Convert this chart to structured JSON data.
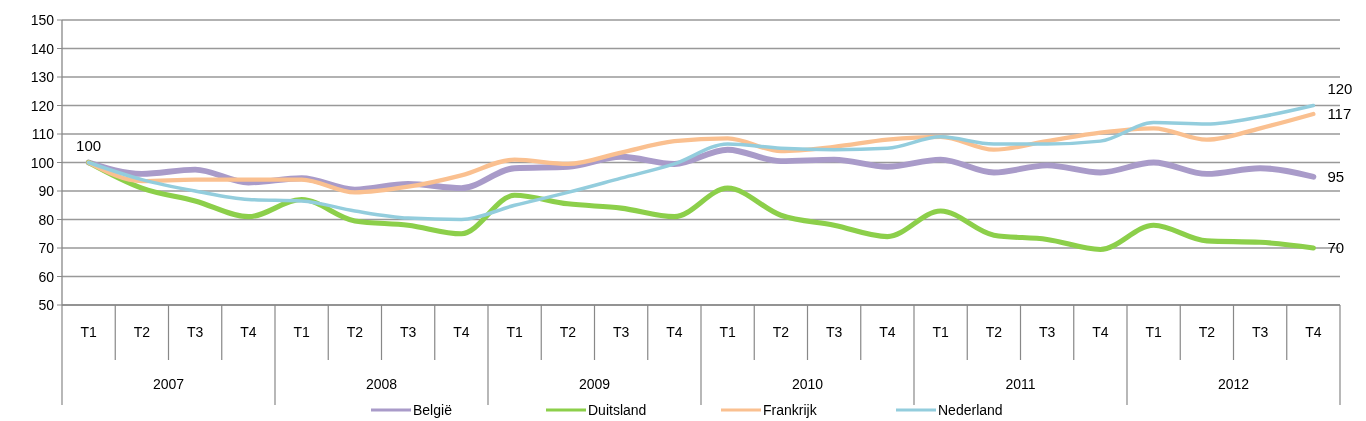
{
  "chart_data": {
    "type": "line",
    "categories": [
      "T1",
      "T2",
      "T3",
      "T4",
      "T1",
      "T2",
      "T3",
      "T4",
      "T1",
      "T2",
      "T3",
      "T4",
      "T1",
      "T2",
      "T3",
      "T4",
      "T1",
      "T2",
      "T3",
      "T4",
      "T1",
      "T2",
      "T3",
      "T4"
    ],
    "annotations": [
      "2007",
      "2008",
      "2009",
      "2010",
      "2011",
      "2012"
    ],
    "ylim": [
      50,
      150
    ],
    "yticks": [
      50,
      60,
      70,
      80,
      90,
      100,
      110,
      120,
      130,
      140,
      150
    ],
    "grid": "y",
    "legend": "bottom",
    "marker": "none",
    "line_style": "solid",
    "series": [
      {
        "name": "België",
        "color": "#a99bc9",
        "values": [
          100,
          96,
          97.5,
          93,
          94.5,
          90.5,
          92.5,
          91,
          98,
          98.5,
          102,
          99.5,
          104.5,
          100.5,
          101,
          98.5,
          101,
          96.5,
          99,
          96.5,
          100,
          96,
          98,
          95
        ],
        "value_labels": [
          "100",
          null,
          null,
          null,
          null,
          null,
          null,
          null,
          null,
          null,
          null,
          null,
          null,
          null,
          null,
          null,
          null,
          null,
          null,
          null,
          null,
          null,
          null,
          "95"
        ]
      },
      {
        "name": "Duitsland",
        "color": "#8ccf4a",
        "values": [
          100,
          91,
          86.5,
          81,
          87,
          79.5,
          78,
          75,
          88.5,
          85.5,
          84,
          81,
          91,
          81.5,
          78,
          74,
          83,
          74.5,
          73,
          69.5,
          78,
          72.5,
          72,
          70
        ],
        "value_labels": [
          null,
          null,
          null,
          null,
          null,
          null,
          null,
          null,
          null,
          null,
          null,
          null,
          null,
          null,
          null,
          null,
          null,
          null,
          null,
          null,
          null,
          null,
          null,
          "70"
        ]
      },
      {
        "name": "Frankrijk",
        "color": "#fac090",
        "values": [
          100,
          93.5,
          94,
          94,
          94,
          89.5,
          91.5,
          95.5,
          101,
          99.5,
          103.5,
          107.5,
          108.5,
          104,
          105.5,
          108,
          109,
          104.5,
          107.5,
          110.5,
          112,
          108,
          112,
          117
        ],
        "value_labels": [
          null,
          null,
          null,
          null,
          null,
          null,
          null,
          null,
          null,
          null,
          null,
          null,
          null,
          null,
          null,
          null,
          null,
          null,
          null,
          null,
          null,
          null,
          null,
          "117"
        ]
      },
      {
        "name": "Nederland",
        "color": "#93cddd",
        "values": [
          100,
          94,
          90,
          87,
          86.5,
          83,
          80.5,
          80,
          85,
          89.5,
          94.5,
          99.5,
          106.5,
          105,
          104.5,
          105,
          109,
          106.5,
          106.5,
          107.5,
          114,
          113.5,
          116,
          120
        ],
        "value_labels": [
          null,
          null,
          null,
          null,
          null,
          null,
          null,
          null,
          null,
          null,
          null,
          null,
          null,
          null,
          null,
          null,
          null,
          null,
          null,
          null,
          null,
          null,
          null,
          "120"
        ]
      }
    ]
  }
}
